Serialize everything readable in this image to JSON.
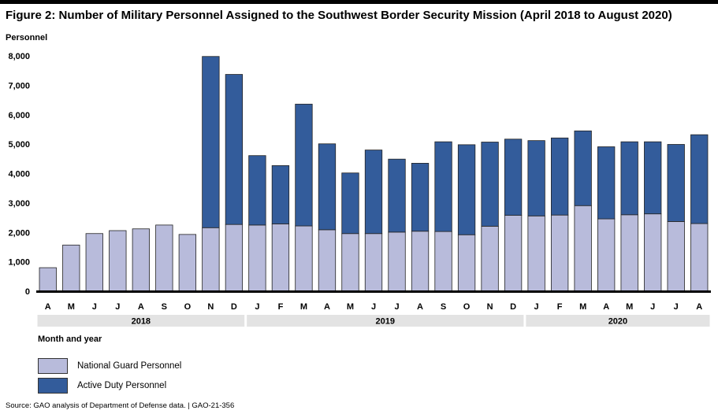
{
  "figure": {
    "title": "Figure 2: Number of Military Personnel Assigned to the Southwest Border Security Mission (April 2018 to August 2020)",
    "source": "Source: GAO analysis of Department of Defense data.  |  GAO-21-356"
  },
  "legend": {
    "guard_label": "National Guard Personnel",
    "active_label": "Active Duty Personnel"
  },
  "colors": {
    "guard": "#b8bbdb",
    "active": "#335c9b",
    "year_band": "#e3e3e3",
    "stroke": "#222222"
  },
  "chart_data": {
    "type": "bar",
    "stacked": true,
    "ylabel": "Personnel",
    "xlabel": "Month and year",
    "ylim": [
      0,
      8000
    ],
    "yticks": [
      "0",
      "1,000",
      "2,000",
      "3,000",
      "4,000",
      "5,000",
      "6,000",
      "7,000",
      "8,000"
    ],
    "grid": false,
    "categories": [
      "A",
      "M",
      "J",
      "J",
      "A",
      "S",
      "O",
      "N",
      "D",
      "J",
      "F",
      "M",
      "A",
      "M",
      "J",
      "J",
      "A",
      "S",
      "O",
      "N",
      "D",
      "J",
      "F",
      "M",
      "A",
      "M",
      "J",
      "J",
      "A"
    ],
    "years": [
      {
        "label": "2018",
        "months": 9
      },
      {
        "label": "2019",
        "months": 12
      },
      {
        "label": "2020",
        "months": 8
      }
    ],
    "series": [
      {
        "name": "National Guard Personnel",
        "values": [
          800,
          1570,
          1960,
          2060,
          2120,
          2250,
          1930,
          2160,
          2270,
          2250,
          2290,
          2220,
          2090,
          1960,
          1960,
          2010,
          2040,
          2030,
          1920,
          2210,
          2580,
          2560,
          2590,
          2910,
          2460,
          2600,
          2630,
          2370,
          2300
        ]
      },
      {
        "name": "Active Duty Personnel",
        "values": [
          0,
          0,
          0,
          0,
          0,
          0,
          0,
          5820,
          5100,
          2360,
          1980,
          4140,
          2920,
          2060,
          2840,
          2480,
          2310,
          3050,
          3060,
          2860,
          2590,
          2560,
          2620,
          2540,
          2450,
          2480,
          2450,
          2620,
          3020
        ]
      }
    ]
  }
}
